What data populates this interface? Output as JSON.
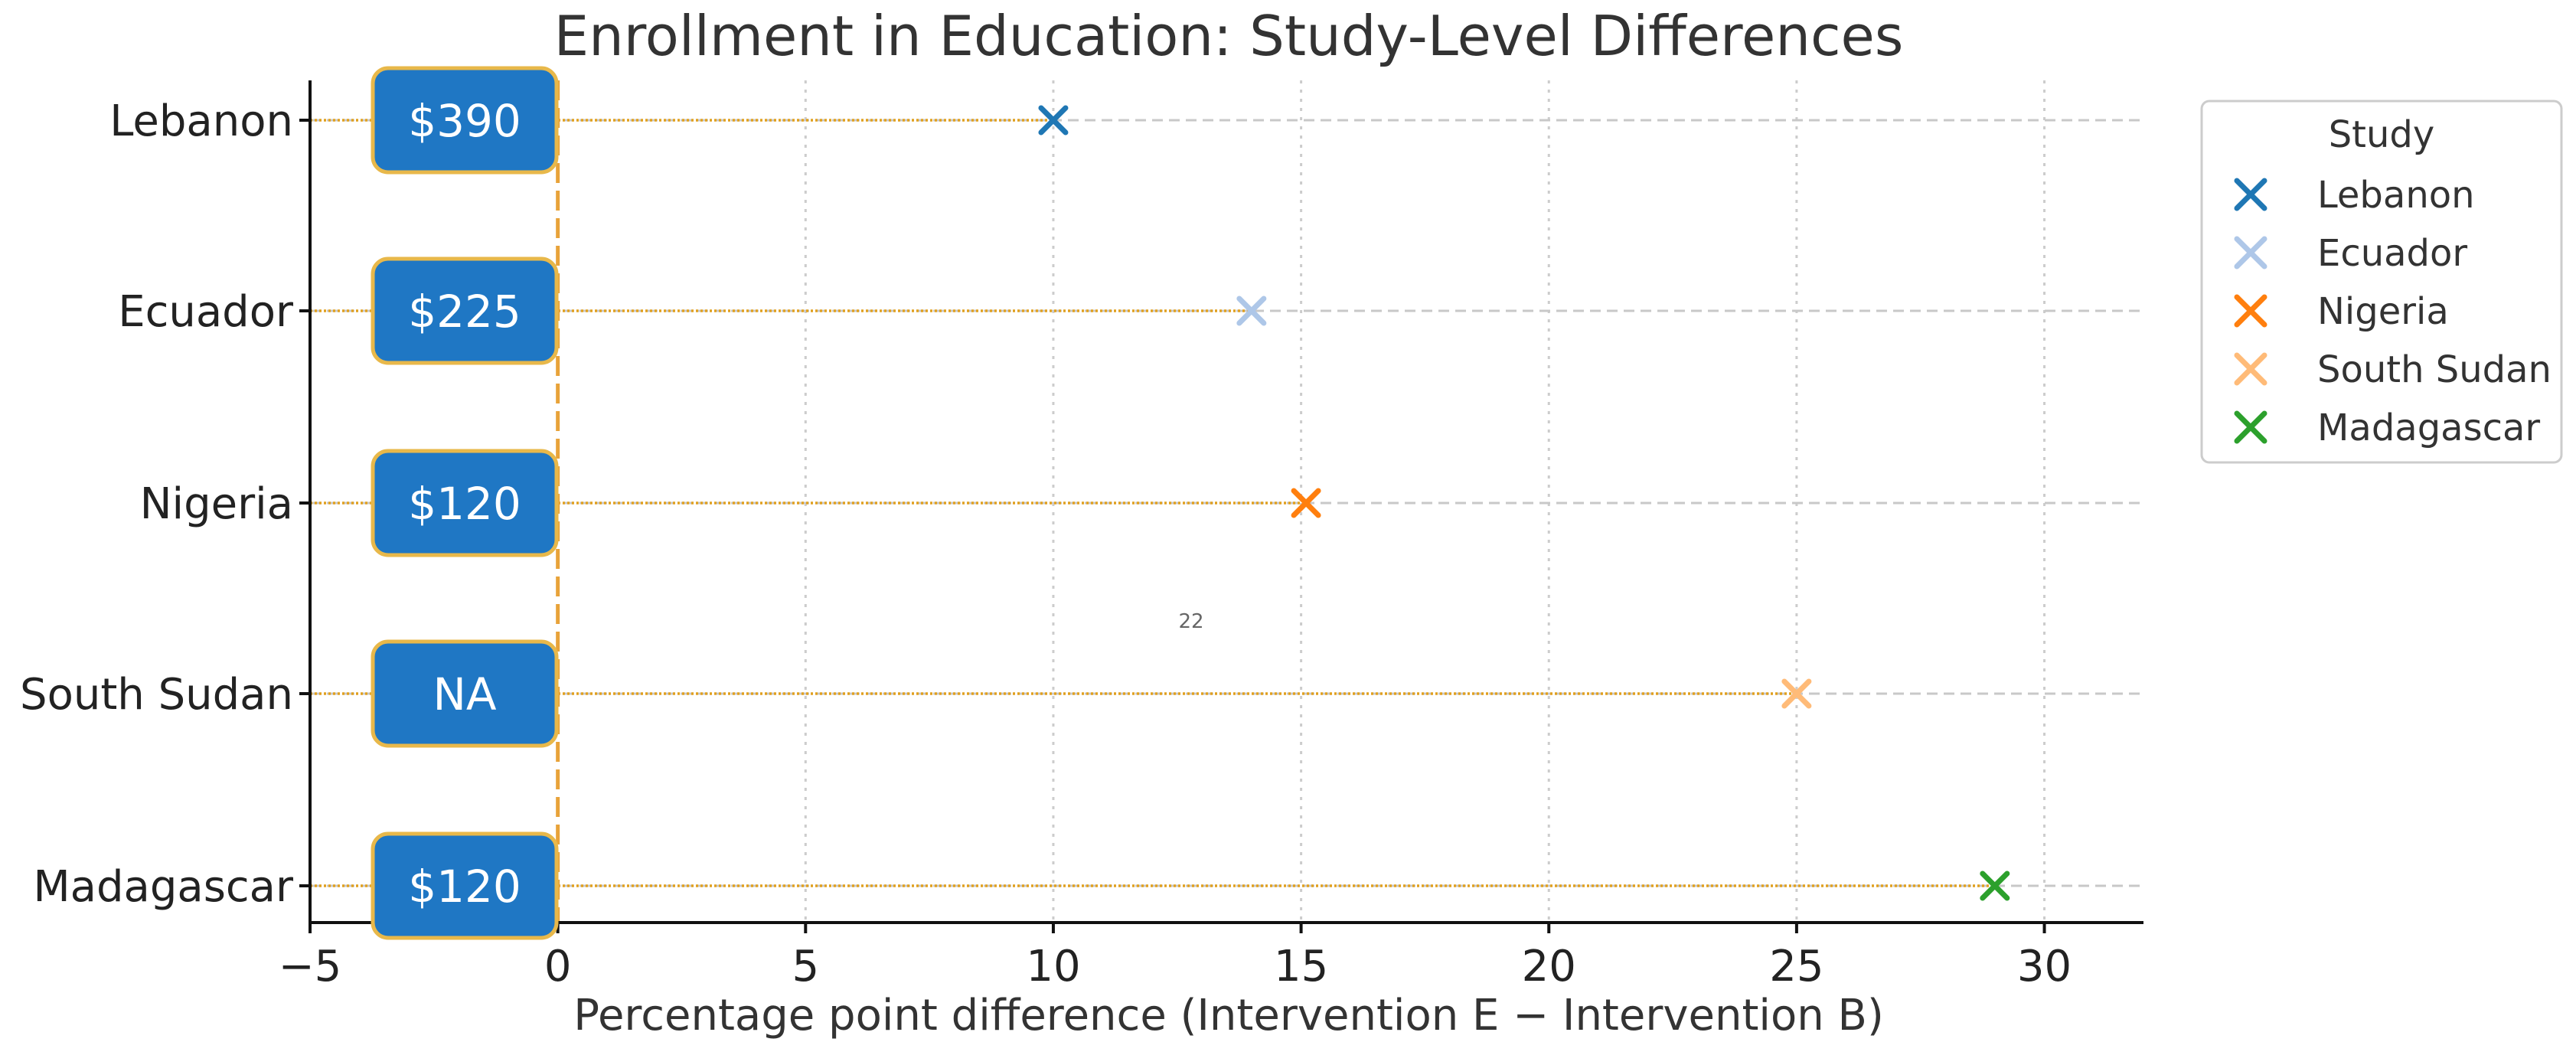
{
  "chart_data": {
    "type": "scatter",
    "title": "Enrollment in Education: Study-Level Differences",
    "xlabel": "Percentage point difference (Intervention E − Intervention B)",
    "ylabel": "",
    "xlim": [
      -5,
      32
    ],
    "xticks": [
      -5,
      0,
      5,
      10,
      15,
      20,
      25,
      30
    ],
    "xtick_labels": [
      "−5",
      "0",
      "5",
      "10",
      "15",
      "20",
      "25",
      "30"
    ],
    "reference_line_x": 0,
    "grid": true,
    "legend_title": "Study",
    "legend_position": "outside-top-right",
    "annotation": "22",
    "series": [
      {
        "name": "Lebanon",
        "x": 10,
        "cost": "$390",
        "color": "#1f77b4"
      },
      {
        "name": "Ecuador",
        "x": 14,
        "cost": "$225",
        "color": "#aec7e8"
      },
      {
        "name": "Nigeria",
        "x": 15.1,
        "cost": "$120",
        "color": "#ff7f0e"
      },
      {
        "name": "South Sudan",
        "x": 25,
        "cost": "NA",
        "color": "#ffbb78"
      },
      {
        "name": "Madagascar",
        "x": 29,
        "cost": "$120",
        "color": "#2ca02c"
      }
    ]
  }
}
